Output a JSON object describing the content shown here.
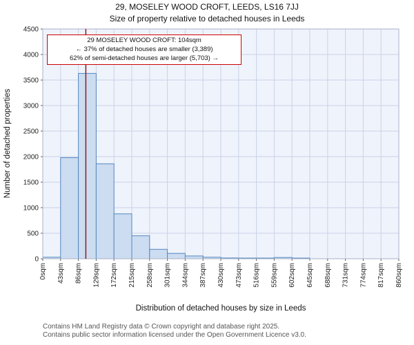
{
  "page": {
    "title": "29, MOSELEY WOOD CROFT, LEEDS, LS16 7JJ",
    "subtitle": "Size of property relative to detached houses in Leeds"
  },
  "annotation": {
    "line1": "29 MOSELEY WOOD CROFT: 104sqm",
    "line2": "← 37% of detached houses are smaller (3,389)",
    "line3": "62% of semi-detached houses are larger (5,703) →"
  },
  "footer": {
    "line1": "Contains HM Land Registry data © Crown copyright and database right 2025.",
    "line2": "Contains public sector information licensed under the Open Government Licence v3.0."
  },
  "chart_data": {
    "type": "bar",
    "title": "29, MOSELEY WOOD CROFT, LEEDS, LS16 7JJ",
    "subtitle": "Size of property relative to detached houses in Leeds",
    "xlabel": "Distribution of detached houses by size in Leeds",
    "ylabel": "Number of detached properties",
    "xlim": [
      0,
      860
    ],
    "ylim": [
      0,
      4500
    ],
    "ytick_step": 500,
    "bin_width_sqm": 43,
    "grid": true,
    "tick_labels": [
      "0sqm",
      "43sqm",
      "86sqm",
      "129sqm",
      "172sqm",
      "215sqm",
      "258sqm",
      "301sqm",
      "344sqm",
      "387sqm",
      "430sqm",
      "473sqm",
      "516sqm",
      "559sqm",
      "602sqm",
      "645sqm",
      "688sqm",
      "731sqm",
      "774sqm",
      "817sqm",
      "860sqm"
    ],
    "values": [
      30,
      1980,
      3630,
      1860,
      880,
      450,
      185,
      105,
      55,
      30,
      15,
      5,
      5,
      25,
      5,
      0,
      0,
      0,
      0,
      0
    ],
    "marker": {
      "label": "29 MOSELEY WOOD CROFT",
      "value_sqm": 104,
      "color": "#8b1a1a"
    },
    "colors": {
      "bar_fill": "#ccdcf1",
      "bar_stroke": "#5588c0",
      "grid": "#c9d2e8",
      "plot_bg": "#eff3fb",
      "plot_border": "#aab2c8",
      "annotation_border": "#cc0000"
    }
  }
}
